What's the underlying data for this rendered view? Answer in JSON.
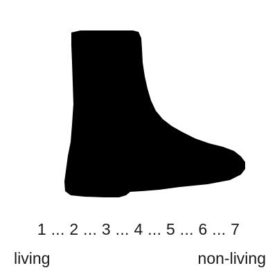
{
  "stimulus": {
    "icon": "boot-silhouette-icon",
    "color": "#000000"
  },
  "rating_scale": {
    "points_text": "1 ... 2 ... 3 ... 4 ... 5 ... 6 ... 7",
    "min_label": "living",
    "max_label": "non-living"
  }
}
